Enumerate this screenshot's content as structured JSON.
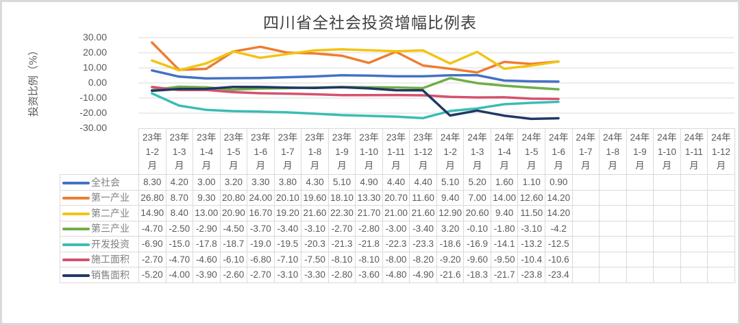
{
  "chart_data": {
    "type": "line",
    "title": "四川省全社会投资增幅比例表",
    "xlabel": "",
    "ylabel": "投资比例（%）",
    "ylim": [
      -30,
      30
    ],
    "yticks": [
      "30.00",
      "20.00",
      "10.00",
      "0.00",
      "-10.00",
      "-20.00",
      "-30.00"
    ],
    "grid": true,
    "legend_position": "data-table",
    "categories": [
      {
        "year": "23年",
        "range": "1-2",
        "unit": "月"
      },
      {
        "year": "23年",
        "range": "1-3",
        "unit": "月"
      },
      {
        "year": "23年",
        "range": "1-4",
        "unit": "月"
      },
      {
        "year": "23年",
        "range": "1-5",
        "unit": "月"
      },
      {
        "year": "23年",
        "range": "1-6",
        "unit": "月"
      },
      {
        "year": "23年",
        "range": "1-7",
        "unit": "月"
      },
      {
        "year": "23年",
        "range": "1-8",
        "unit": "月"
      },
      {
        "year": "23年",
        "range": "1-9",
        "unit": "月"
      },
      {
        "year": "23年",
        "range": "1-10",
        "unit": "月"
      },
      {
        "year": "23年",
        "range": "1-11",
        "unit": "月"
      },
      {
        "year": "23年",
        "range": "1-12",
        "unit": "月"
      },
      {
        "year": "24年",
        "range": "1-2",
        "unit": "月"
      },
      {
        "year": "24年",
        "range": "1-3",
        "unit": "月"
      },
      {
        "year": "24年",
        "range": "1-4",
        "unit": "月"
      },
      {
        "year": "24年",
        "range": "1-5",
        "unit": "月"
      },
      {
        "year": "24年",
        "range": "1-6",
        "unit": "月"
      },
      {
        "year": "24年",
        "range": "1-7",
        "unit": "月"
      },
      {
        "year": "24年",
        "range": "1-8",
        "unit": "月"
      },
      {
        "year": "24年",
        "range": "1-9",
        "unit": "月"
      },
      {
        "year": "24年",
        "range": "1-10",
        "unit": "月"
      },
      {
        "year": "24年",
        "range": "1-11",
        "unit": "月"
      },
      {
        "year": "24年",
        "range": "1-12",
        "unit": "月"
      }
    ],
    "series": [
      {
        "name": "全社会",
        "color": "#4472c4",
        "values": [
          8.3,
          4.2,
          3.0,
          3.2,
          3.3,
          3.8,
          4.3,
          5.1,
          4.9,
          4.4,
          4.4,
          5.1,
          5.2,
          1.6,
          1.1,
          0.9
        ],
        "labels": [
          "8.30",
          "4.20",
          "3.00",
          "3.20",
          "3.30",
          "3.80",
          "4.30",
          "5.10",
          "4.90",
          "4.40",
          "4.40",
          "5.10",
          "5.20",
          "1.60",
          "1.10",
          "0.90"
        ]
      },
      {
        "name": "第一产业",
        "color": "#ed7d31",
        "values": [
          26.8,
          8.7,
          9.3,
          20.8,
          24.0,
          20.1,
          19.6,
          18.1,
          13.3,
          20.7,
          11.6,
          9.4,
          7.0,
          14.0,
          12.6,
          14.2
        ],
        "labels": [
          "26.80",
          "8.70",
          "9.30",
          "20.80",
          "24.00",
          "20.10",
          "19.60",
          "18.10",
          "13.30",
          "20.70",
          "11.60",
          "9.40",
          "7.00",
          "14.00",
          "12.60",
          "14.20"
        ]
      },
      {
        "name": "第二产业",
        "color": "#f2c314",
        "values": [
          14.9,
          8.4,
          13.0,
          20.9,
          16.7,
          19.2,
          21.6,
          22.3,
          21.7,
          21.0,
          21.6,
          12.9,
          20.6,
          9.4,
          11.5,
          14.2
        ],
        "labels": [
          "14.90",
          "8.40",
          "13.00",
          "20.90",
          "16.70",
          "19.20",
          "21.60",
          "22.30",
          "21.70",
          "21.00",
          "21.60",
          "12.90",
          "20.60",
          "9.40",
          "11.50",
          "14.20"
        ]
      },
      {
        "name": "第三产业",
        "color": "#70ad47",
        "values": [
          -4.7,
          -2.5,
          -2.9,
          -4.5,
          -3.7,
          -3.4,
          -3.1,
          -2.7,
          -2.8,
          -3.0,
          -3.4,
          3.2,
          -0.1,
          -1.8,
          -3.1,
          -4.2
        ],
        "labels": [
          "-4.70",
          "-2.50",
          "-2.90",
          "-4.50",
          "-3.70",
          "-3.40",
          "-3.10",
          "-2.70",
          "-2.80",
          "-3.00",
          "-3.40",
          "3.20",
          "-0.10",
          "-1.80",
          "-3.10",
          "-4.2"
        ]
      },
      {
        "name": "开发投资",
        "color": "#3cbcb4",
        "values": [
          -6.9,
          -15.0,
          -17.8,
          -18.7,
          -19.0,
          -19.5,
          -20.3,
          -21.3,
          -21.8,
          -22.3,
          -23.3,
          -18.6,
          -16.9,
          -14.1,
          -13.2,
          -12.5
        ],
        "labels": [
          "-6.90",
          "-15.0",
          "-17.8",
          "-18.7",
          "-19.0",
          "-19.5",
          "-20.3",
          "-21.3",
          "-21.8",
          "-22.3",
          "-23.3",
          "-18.6",
          "-16.9",
          "-14.1",
          "-13.2",
          "-12.5"
        ]
      },
      {
        "name": "施工面积",
        "color": "#d4526e",
        "values": [
          -2.7,
          -4.7,
          -4.6,
          -6.1,
          -6.8,
          -7.1,
          -7.5,
          -8.1,
          -8.1,
          -8.0,
          -8.2,
          -9.2,
          -9.6,
          -9.5,
          -10.4,
          -10.6
        ],
        "labels": [
          "-2.70",
          "-4.70",
          "-4.60",
          "-6.10",
          "-6.80",
          "-7.10",
          "-7.50",
          "-8.10",
          "-8.10",
          "-8.00",
          "-8.20",
          "-9.20",
          "-9.60",
          "-9.50",
          "-10.4",
          "-10.6"
        ]
      },
      {
        "name": "销售面积",
        "color": "#203864",
        "values": [
          -5.2,
          -4.0,
          -3.9,
          -2.6,
          -2.7,
          -3.1,
          -3.3,
          -2.8,
          -3.6,
          -4.8,
          -4.9,
          -21.6,
          -18.3,
          -21.7,
          -23.8,
          -23.4
        ],
        "labels": [
          "-5.20",
          "-4.00",
          "-3.90",
          "-2.60",
          "-2.70",
          "-3.10",
          "-3.30",
          "-2.80",
          "-3.60",
          "-4.80",
          "-4.90",
          "-21.6",
          "-18.3",
          "-21.7",
          "-23.8",
          "-23.4"
        ]
      }
    ]
  }
}
